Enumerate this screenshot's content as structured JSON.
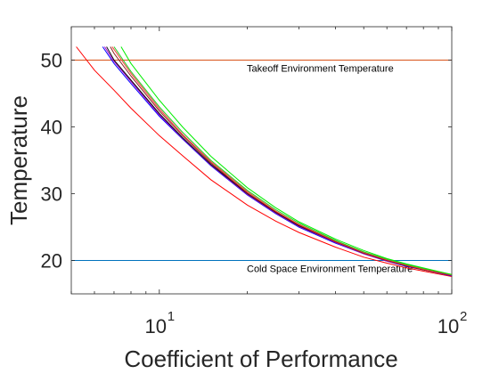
{
  "chart_data": {
    "type": "line",
    "xlabel": "Coefficient of Performance",
    "ylabel": "Temperature",
    "xscale": "log",
    "xlim": [
      5,
      100
    ],
    "ylim": [
      15,
      55
    ],
    "x_ticks": [
      {
        "value": 10,
        "label": "10",
        "exp": "1"
      },
      {
        "value": 100,
        "label": "10",
        "exp": "2"
      }
    ],
    "y_ticks": [
      20,
      30,
      40,
      50
    ],
    "grid": false,
    "reference_lines": [
      {
        "y": 50,
        "label": "Takeoff Environment Temperature",
        "color": "#d95319"
      },
      {
        "y": 20,
        "label": "Cold Space Environment Temperature",
        "color": "#0072bd"
      }
    ],
    "series": [
      {
        "color": "#ff0000",
        "points": [
          [
            5.2,
            52
          ],
          [
            6,
            48.5
          ],
          [
            7,
            45.5
          ],
          [
            8,
            42.8
          ],
          [
            10,
            38.7
          ],
          [
            12,
            35.7
          ],
          [
            15,
            32.1
          ],
          [
            20,
            28.3
          ],
          [
            25,
            25.9
          ],
          [
            30,
            24.2
          ],
          [
            40,
            22
          ],
          [
            50,
            20.5
          ],
          [
            60,
            19.6
          ],
          [
            70,
            18.9
          ],
          [
            80,
            18.4
          ],
          [
            100,
            17.6
          ]
        ]
      },
      {
        "color": "#0000ff",
        "points": [
          [
            6.4,
            52
          ],
          [
            7,
            49.5
          ],
          [
            8,
            46.5
          ],
          [
            10,
            41.6
          ],
          [
            12,
            38.2
          ],
          [
            15,
            34.2
          ],
          [
            20,
            29.8
          ],
          [
            25,
            27
          ],
          [
            30,
            25
          ],
          [
            40,
            22.6
          ],
          [
            50,
            21
          ],
          [
            60,
            19.9
          ],
          [
            70,
            19.1
          ],
          [
            80,
            18.6
          ],
          [
            100,
            17.7
          ]
        ]
      },
      {
        "color": "#aa00cc",
        "points": [
          [
            6.5,
            52
          ],
          [
            7,
            49.8
          ],
          [
            8,
            46.8
          ],
          [
            10,
            41.8
          ],
          [
            12,
            38.3
          ],
          [
            15,
            34.3
          ],
          [
            20,
            29.9
          ],
          [
            25,
            27.1
          ],
          [
            30,
            25.1
          ],
          [
            40,
            22.7
          ],
          [
            50,
            21
          ],
          [
            60,
            19.9
          ],
          [
            70,
            19.2
          ],
          [
            80,
            18.6
          ],
          [
            100,
            17.8
          ]
        ]
      },
      {
        "color": "#0d0d0d",
        "points": [
          [
            6.6,
            52
          ],
          [
            7,
            50
          ],
          [
            8,
            47
          ],
          [
            10,
            42
          ],
          [
            12,
            38.4
          ],
          [
            15,
            34.4
          ],
          [
            20,
            30
          ],
          [
            25,
            27.2
          ],
          [
            30,
            25.2
          ],
          [
            40,
            22.8
          ],
          [
            50,
            21.1
          ],
          [
            60,
            20
          ],
          [
            70,
            19.2
          ],
          [
            80,
            18.6
          ],
          [
            100,
            17.8
          ]
        ]
      },
      {
        "color": "#8b2020",
        "points": [
          [
            6.8,
            52
          ],
          [
            7,
            51
          ],
          [
            8,
            47.6
          ],
          [
            10,
            42.4
          ],
          [
            12,
            38.7
          ],
          [
            15,
            34.6
          ],
          [
            20,
            30.1
          ],
          [
            25,
            27.3
          ],
          [
            30,
            25.3
          ],
          [
            40,
            22.8
          ],
          [
            50,
            21.1
          ],
          [
            60,
            20
          ],
          [
            70,
            19.2
          ],
          [
            80,
            18.6
          ],
          [
            100,
            17.8
          ]
        ]
      },
      {
        "color": "#ff3030",
        "points": [
          [
            6.9,
            52
          ],
          [
            8,
            48
          ],
          [
            10,
            42.7
          ],
          [
            12,
            38.9
          ],
          [
            15,
            34.8
          ],
          [
            20,
            30.3
          ],
          [
            25,
            27.4
          ],
          [
            30,
            25.4
          ],
          [
            40,
            22.9
          ],
          [
            50,
            21.2
          ],
          [
            60,
            20.1
          ],
          [
            70,
            19.3
          ],
          [
            80,
            18.7
          ],
          [
            100,
            17.8
          ]
        ]
      },
      {
        "color": "#22cc22",
        "points": [
          [
            7,
            52
          ],
          [
            8,
            48.3
          ],
          [
            10,
            43
          ],
          [
            12,
            39.2
          ],
          [
            15,
            35
          ],
          [
            20,
            30.5
          ],
          [
            25,
            27.6
          ],
          [
            30,
            25.6
          ],
          [
            40,
            23
          ],
          [
            50,
            21.3
          ],
          [
            60,
            20.2
          ],
          [
            70,
            19.4
          ],
          [
            80,
            18.8
          ],
          [
            100,
            17.9
          ]
        ]
      },
      {
        "color": "#00ee00",
        "points": [
          [
            7.4,
            52
          ],
          [
            8,
            49.5
          ],
          [
            10,
            44
          ],
          [
            12,
            40
          ],
          [
            15,
            35.6
          ],
          [
            20,
            30.9
          ],
          [
            25,
            27.9
          ],
          [
            30,
            25.8
          ],
          [
            40,
            23.2
          ],
          [
            50,
            21.5
          ],
          [
            60,
            20.3
          ],
          [
            70,
            19.5
          ],
          [
            80,
            18.9
          ],
          [
            100,
            17.9
          ]
        ]
      }
    ]
  }
}
